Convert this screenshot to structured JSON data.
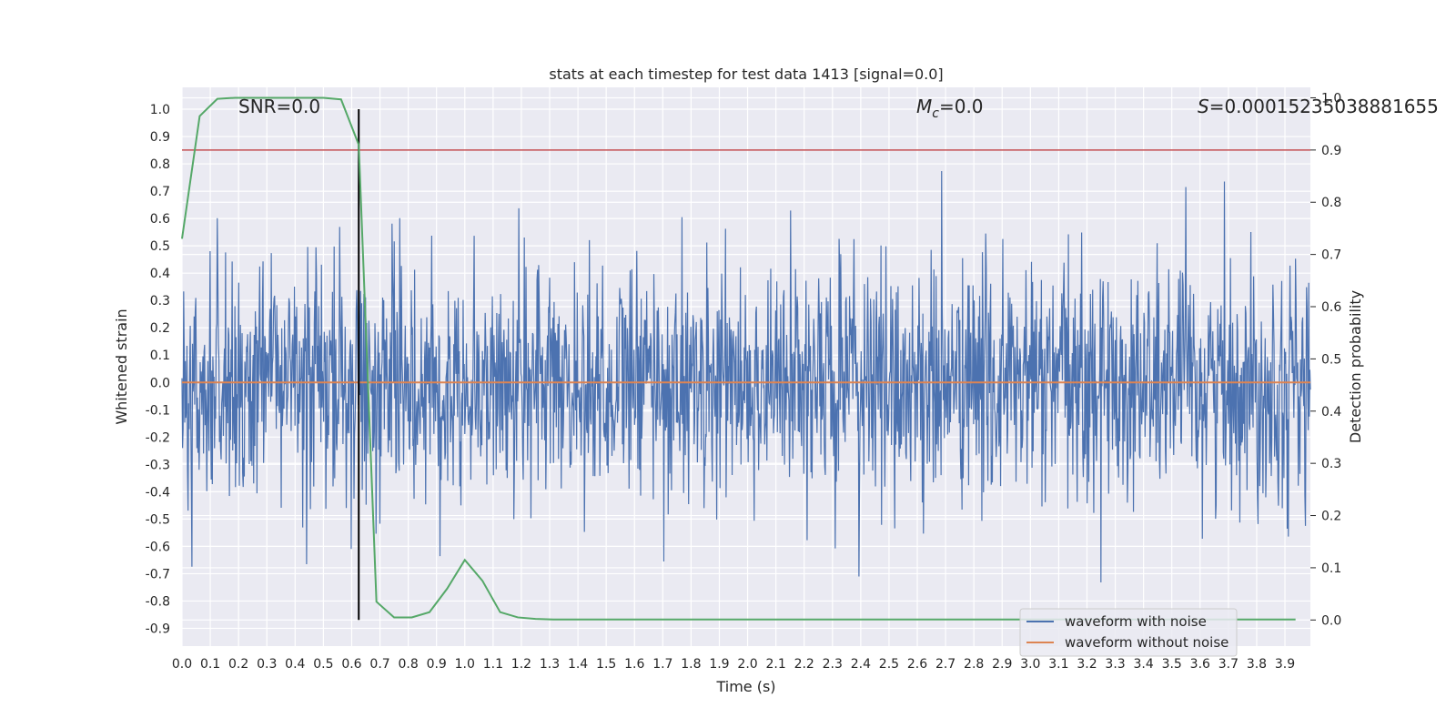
{
  "chart_data": {
    "type": "line",
    "title": "stats at each timestep for test data 1413 [signal=0.0]",
    "xlabel": "Time (s)",
    "ylabel": "Whitened strain",
    "y2label": "Detection probability",
    "xlim": [
      0.0,
      3.99
    ],
    "ylim": [
      -0.965,
      1.08
    ],
    "y2lim": [
      -0.05,
      1.02
    ],
    "x_ticks": [
      "0.0",
      "0.1",
      "0.2",
      "0.3",
      "0.4",
      "0.5",
      "0.6",
      "0.7",
      "0.8",
      "0.9",
      "1.0",
      "1.1",
      "1.2",
      "1.3",
      "1.4",
      "1.5",
      "1.6",
      "1.7",
      "1.8",
      "1.9",
      "2.0",
      "2.1",
      "2.2",
      "2.3",
      "2.4",
      "2.5",
      "2.6",
      "2.7",
      "2.8",
      "2.9",
      "3.0",
      "3.1",
      "3.2",
      "3.3",
      "3.4",
      "3.5",
      "3.6",
      "3.7",
      "3.8",
      "3.9"
    ],
    "y_ticks": [
      "1.0",
      "0.9",
      "0.8",
      "0.7",
      "0.6",
      "0.5",
      "0.4",
      "0.3",
      "0.2",
      "0.1",
      "0.0",
      "-0.1",
      "-0.2",
      "-0.3",
      "-0.4",
      "-0.5",
      "-0.6",
      "-0.7",
      "-0.8",
      "-0.9"
    ],
    "y2_ticks": [
      "1.0",
      "0.9",
      "0.8",
      "0.7",
      "0.6",
      "0.5",
      "0.4",
      "0.3",
      "0.2",
      "0.1",
      "0.0"
    ],
    "annotations": {
      "snr_label": "SNR=0.0",
      "mc_symbol": "M",
      "mc_subscript": "c",
      "mc_value": "=0.0",
      "s_symbol": "S",
      "s_value": "=0.00015235038881655"
    },
    "threshold_probability": 0.9,
    "vertical_marker_time": 0.625,
    "noise_amplitude_range": [
      -0.87,
      1.0
    ],
    "noise_samples": 2048,
    "series": [
      {
        "name": "waveform with noise",
        "color": "#4c72b0",
        "axis": "left"
      },
      {
        "name": "waveform without noise",
        "color": "#dd8452",
        "axis": "left",
        "value": 0.0
      },
      {
        "name": "detection probability",
        "color": "#55a868",
        "axis": "right",
        "x": [
          0.0,
          0.0625,
          0.125,
          0.1875,
          0.25,
          0.3125,
          0.375,
          0.4375,
          0.5,
          0.5625,
          0.625,
          0.6875,
          0.75,
          0.8125,
          0.875,
          0.9375,
          1.0,
          1.0625,
          1.125,
          1.1875,
          1.25,
          1.3125,
          1.5,
          2.0,
          2.5,
          3.0,
          3.5,
          3.9375
        ],
        "values": [
          0.73,
          0.965,
          0.998,
          1.0,
          1.0,
          1.0,
          1.0,
          1.0,
          1.0,
          0.997,
          0.91,
          0.035,
          0.005,
          0.005,
          0.015,
          0.06,
          0.115,
          0.075,
          0.015,
          0.005,
          0.002,
          0.001,
          0.001,
          0.001,
          0.001,
          0.001,
          0.001,
          0.001
        ]
      }
    ],
    "legend_position": "lower-right",
    "grid": true
  }
}
